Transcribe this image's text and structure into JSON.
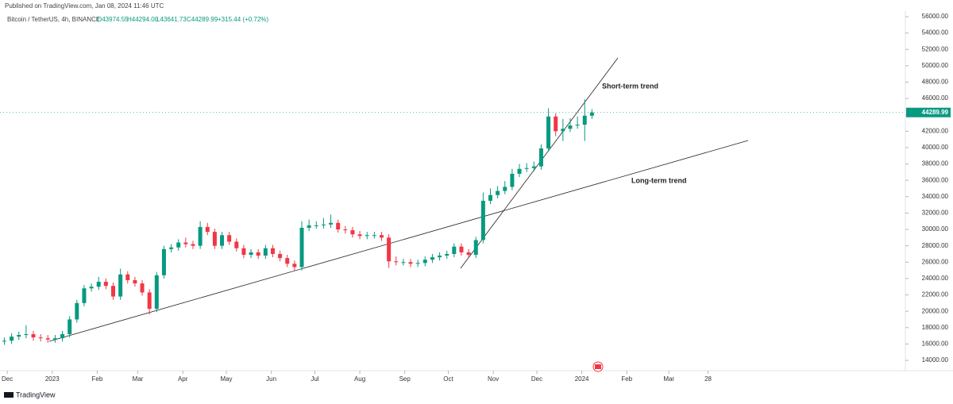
{
  "header": {
    "published": "Published on TradingView.com, Jan 08, 2024 11:46 UTC",
    "symbol": "Bitcoin / TetherUS, 4h, BINANCE",
    "open": "O43974.55",
    "high": "H44294.00",
    "low": "L43641.73",
    "close": "C44289.99",
    "change": "+315.44 (+0.72%)"
  },
  "footer": {
    "brand": "TradingView"
  },
  "chart_data": {
    "type": "candlestick",
    "x": [
      -33,
      -28,
      -23,
      -18,
      -13,
      -8,
      -3,
      2,
      7,
      12,
      17,
      22,
      27,
      32,
      37,
      42,
      47,
      52,
      57,
      62,
      67,
      72,
      77,
      82,
      87,
      92,
      97,
      102,
      107,
      112,
      117,
      122,
      127,
      132,
      137,
      142,
      147,
      152,
      157,
      162,
      167,
      172,
      177,
      182,
      187,
      192,
      197,
      202,
      207,
      212,
      217,
      222,
      227,
      232,
      237,
      242,
      247,
      252,
      257,
      262,
      267,
      272,
      277,
      282,
      287,
      292,
      297,
      302,
      307,
      312,
      317,
      322,
      327,
      332,
      337,
      342,
      347,
      352,
      357,
      362,
      367,
      372
    ],
    "open": [
      16300,
      16400,
      16900,
      17100,
      17200,
      16800,
      16700,
      16550,
      16700,
      17200,
      19000,
      21000,
      22800,
      23000,
      23600,
      23100,
      21800,
      24500,
      23800,
      23400,
      22300,
      20300,
      24400,
      27600,
      27800,
      28400,
      28200,
      28000,
      30300,
      29700,
      28000,
      29300,
      28500,
      27700,
      26900,
      27200,
      26800,
      27700,
      27000,
      26500,
      25800,
      25400,
      30200,
      30500,
      30500,
      30600,
      30800,
      30000,
      29900,
      29400,
      29200,
      29300,
      29300,
      29000,
      26100,
      26000,
      26000,
      25800,
      25900,
      26300,
      26600,
      26800,
      27000,
      27900,
      27200,
      26900,
      28700,
      33500,
      34200,
      34700,
      35200,
      36800,
      37400,
      37500,
      37700,
      39900,
      43800,
      42000,
      42300,
      42700,
      42800,
      43900
    ],
    "high": [
      16800,
      17300,
      17500,
      18300,
      17600,
      17200,
      17100,
      17100,
      17600,
      19400,
      21400,
      23200,
      23400,
      24200,
      24000,
      23500,
      25200,
      24900,
      24200,
      23800,
      22700,
      24800,
      28000,
      28200,
      28800,
      29000,
      28600,
      31000,
      30800,
      30100,
      29700,
      29700,
      28900,
      28100,
      27600,
      27600,
      28100,
      28100,
      27400,
      26900,
      26200,
      31000,
      31200,
      31000,
      31400,
      31800,
      31200,
      30400,
      30300,
      29800,
      29700,
      29700,
      29700,
      29400,
      26700,
      26400,
      26400,
      26300,
      26700,
      27000,
      27200,
      27400,
      28300,
      28300,
      27600,
      29100,
      34500,
      35000,
      35300,
      35900,
      37400,
      38000,
      38100,
      38300,
      40400,
      44800,
      44200,
      43500,
      43600,
      43800,
      45900,
      44700
    ],
    "low": [
      15900,
      16000,
      16500,
      16700,
      16400,
      16300,
      16150,
      16150,
      16300,
      16800,
      18600,
      20600,
      22400,
      22600,
      22700,
      21400,
      21400,
      23400,
      23000,
      21900,
      19600,
      19900,
      24000,
      27200,
      27400,
      27800,
      27600,
      27600,
      29300,
      27600,
      27600,
      28100,
      27300,
      26500,
      26500,
      26400,
      26400,
      26600,
      26100,
      25400,
      25000,
      25000,
      29800,
      30100,
      30100,
      30200,
      29600,
      29500,
      29000,
      28800,
      28800,
      28900,
      28600,
      25300,
      25600,
      25600,
      25400,
      25400,
      25500,
      25900,
      26200,
      26400,
      26600,
      26800,
      26500,
      26500,
      28300,
      33100,
      33800,
      34300,
      34800,
      36400,
      37000,
      37100,
      37300,
      39500,
      41400,
      40800,
      41900,
      42300,
      40800,
      43500
    ],
    "close": [
      16400,
      16900,
      17100,
      17200,
      16800,
      16700,
      16550,
      16700,
      17200,
      19000,
      21000,
      22800,
      23000,
      23600,
      23100,
      21800,
      24500,
      23800,
      23400,
      22300,
      20300,
      24400,
      27600,
      27800,
      28400,
      28200,
      28000,
      30300,
      29700,
      28000,
      29300,
      28500,
      27700,
      26900,
      27200,
      26800,
      27700,
      27000,
      26500,
      25800,
      25400,
      30200,
      30500,
      30500,
      30600,
      30800,
      30000,
      29900,
      29400,
      29200,
      29300,
      29300,
      29000,
      26100,
      26000,
      26000,
      25800,
      25900,
      26300,
      26600,
      26800,
      27000,
      27900,
      27200,
      26900,
      28700,
      33500,
      34200,
      34700,
      35200,
      36800,
      37400,
      37500,
      37700,
      39900,
      43800,
      42000,
      42300,
      42700,
      42800,
      43900,
      44290
    ],
    "up_color": "#089981",
    "down_color": "#f23645",
    "last_price": 44289.99,
    "annotations": {
      "short": "Short-term trend",
      "long": "Long-term trend"
    },
    "xlim": [
      -36,
      588
    ],
    "xticks": [
      {
        "value": -31,
        "label": "Dec"
      },
      {
        "value": 0,
        "label": "2023"
      },
      {
        "value": 31,
        "label": "Feb"
      },
      {
        "value": 59,
        "label": "Mar"
      },
      {
        "value": 90,
        "label": "Apr"
      },
      {
        "value": 120,
        "label": "May"
      },
      {
        "value": 151,
        "label": "Jun"
      },
      {
        "value": 181,
        "label": "Jul"
      },
      {
        "value": 212,
        "label": "Aug"
      },
      {
        "value": 243,
        "label": "Sep"
      },
      {
        "value": 273,
        "label": "Oct"
      },
      {
        "value": 304,
        "label": "Nov"
      },
      {
        "value": 334,
        "label": "Dec"
      },
      {
        "value": 365,
        "label": "2024"
      },
      {
        "value": 396,
        "label": "Feb"
      },
      {
        "value": 425,
        "label": "Mar"
      },
      {
        "value": 452,
        "label": "28"
      }
    ],
    "ylim": [
      14000,
      56000
    ],
    "yticks": [
      {
        "value": 14000,
        "label": "14000.00"
      },
      {
        "value": 16000,
        "label": "16000.00"
      },
      {
        "value": 18000,
        "label": "18000.00"
      },
      {
        "value": 20000,
        "label": "20000.00"
      },
      {
        "value": 22000,
        "label": "22000.00"
      },
      {
        "value": 24000,
        "label": "24000.00"
      },
      {
        "value": 26000,
        "label": "26000.00"
      },
      {
        "value": 28000,
        "label": "28000.00"
      },
      {
        "value": 30000,
        "label": "30000.00"
      },
      {
        "value": 32000,
        "label": "32000.00"
      },
      {
        "value": 34000,
        "label": "34000.00"
      },
      {
        "value": 36000,
        "label": "36000.00"
      },
      {
        "value": 38000,
        "label": "38000.00"
      },
      {
        "value": 40000,
        "label": "40000.00"
      },
      {
        "value": 42000,
        "label": "42000.00"
      },
      {
        "value": 44000,
        "label": "44000.00"
      },
      {
        "value": 46000,
        "label": "46000.00"
      },
      {
        "value": 48000,
        "label": "48000.00"
      },
      {
        "value": 50000,
        "label": "50000.00"
      },
      {
        "value": 52000,
        "label": "52000.00"
      },
      {
        "value": 54000,
        "label": "54000.00"
      },
      {
        "value": 56000,
        "label": "56000.00"
      }
    ]
  }
}
